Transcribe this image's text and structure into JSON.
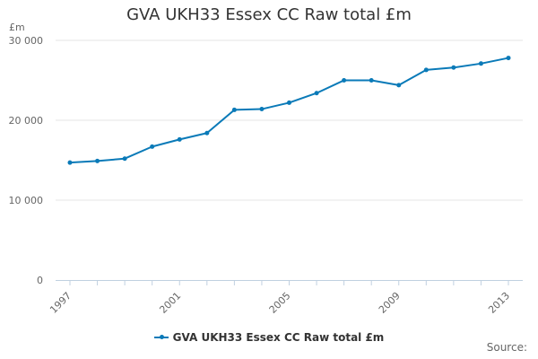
{
  "chart_data": {
    "type": "line",
    "title": "GVA UKH33 Essex CC Raw total £m",
    "ylabel": "£m",
    "xlabel": "",
    "ylim": [
      0,
      30000
    ],
    "xlim": [
      1997,
      2013
    ],
    "y_ticks": [
      0,
      10000,
      20000,
      30000
    ],
    "y_tick_labels": [
      "0",
      "10 000",
      "20 000",
      "30 000"
    ],
    "x_ticks": [
      1997,
      2001,
      2005,
      2009,
      2013
    ],
    "x_tick_labels": [
      "1997",
      "2001",
      "2005",
      "2009",
      "2013"
    ],
    "grid": "horizontal",
    "legend_position": "bottom",
    "x": [
      1997,
      1998,
      1999,
      2000,
      2001,
      2002,
      2003,
      2004,
      2005,
      2006,
      2007,
      2008,
      2009,
      2010,
      2011,
      2012,
      2013
    ],
    "series": [
      {
        "name": "GVA UKH33 Essex CC Raw total £m",
        "color": "#0a7ab8",
        "values": [
          14700,
          14900,
          15200,
          16700,
          17600,
          18400,
          21300,
          21400,
          22200,
          23400,
          25000,
          25000,
          24400,
          26300,
          26600,
          27100,
          27800
        ]
      }
    ]
  },
  "source_label": "Source:"
}
